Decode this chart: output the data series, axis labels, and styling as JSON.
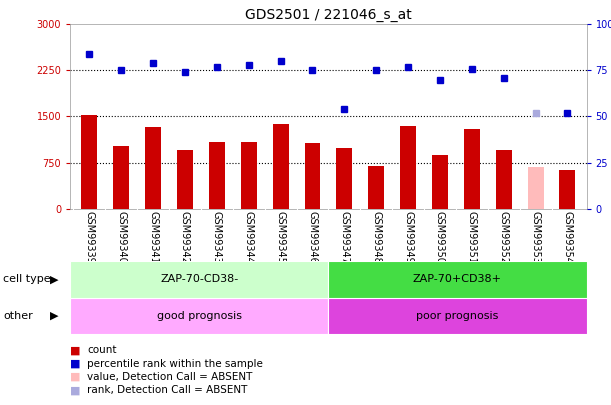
{
  "title": "GDS2501 / 221046_s_at",
  "samples": [
    "GSM99339",
    "GSM99340",
    "GSM99341",
    "GSM99342",
    "GSM99343",
    "GSM99344",
    "GSM99345",
    "GSM99346",
    "GSM99347",
    "GSM99348",
    "GSM99349",
    "GSM99350",
    "GSM99351",
    "GSM99352",
    "GSM99353",
    "GSM99354"
  ],
  "bar_values": [
    1530,
    1020,
    1330,
    950,
    1090,
    1080,
    1380,
    1060,
    980,
    700,
    1340,
    880,
    1290,
    960,
    680,
    620
  ],
  "bar_colors": [
    "#cc0000",
    "#cc0000",
    "#cc0000",
    "#cc0000",
    "#cc0000",
    "#cc0000",
    "#cc0000",
    "#cc0000",
    "#cc0000",
    "#cc0000",
    "#cc0000",
    "#cc0000",
    "#cc0000",
    "#cc0000",
    "#ffbbbb",
    "#cc0000"
  ],
  "dot_values": [
    84,
    75,
    79,
    74,
    77,
    78,
    80,
    75,
    54,
    75,
    77,
    70,
    76,
    71,
    52,
    52
  ],
  "dot_colors": [
    "#0000cc",
    "#0000cc",
    "#0000cc",
    "#0000cc",
    "#0000cc",
    "#0000cc",
    "#0000cc",
    "#0000cc",
    "#0000cc",
    "#0000cc",
    "#0000cc",
    "#0000cc",
    "#0000cc",
    "#0000cc",
    "#aaaadd",
    "#0000cc"
  ],
  "ylim_left": [
    0,
    3000
  ],
  "ylim_right": [
    0,
    100
  ],
  "yticks_left": [
    0,
    750,
    1500,
    2250,
    3000
  ],
  "yticks_right": [
    0,
    25,
    50,
    75,
    100
  ],
  "hlines": [
    750,
    1500,
    2250
  ],
  "cell_type_groups": [
    {
      "label": "ZAP-70-CD38-",
      "start": 0,
      "end": 8,
      "color": "#ccffcc"
    },
    {
      "label": "ZAP-70+CD38+",
      "start": 8,
      "end": 16,
      "color": "#44dd44"
    }
  ],
  "other_groups": [
    {
      "label": "good prognosis",
      "start": 0,
      "end": 8,
      "color": "#ffaaff"
    },
    {
      "label": "poor prognosis",
      "start": 8,
      "end": 16,
      "color": "#dd44dd"
    }
  ],
  "cell_type_label": "cell type",
  "other_label": "other",
  "legend_items": [
    {
      "label": "count",
      "color": "#cc0000"
    },
    {
      "label": "percentile rank within the sample",
      "color": "#0000cc"
    },
    {
      "label": "value, Detection Call = ABSENT",
      "color": "#ffbbbb"
    },
    {
      "label": "rank, Detection Call = ABSENT",
      "color": "#aaaadd"
    }
  ],
  "bar_width": 0.5,
  "background_color": "#ffffff",
  "plot_bg_color": "#ffffff",
  "xtick_bg_color": "#dddddd",
  "right_axis_color": "#0000cc",
  "left_axis_color": "#cc0000",
  "title_fontsize": 10,
  "tick_fontsize": 7,
  "label_fontsize": 8,
  "legend_fontsize": 7.5
}
